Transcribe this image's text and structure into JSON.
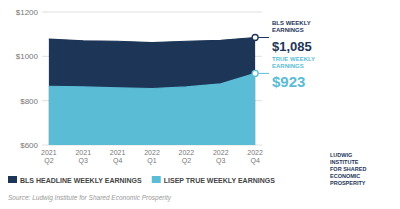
{
  "chart_data": {
    "type": "area",
    "categories": [
      "2021\nQ2",
      "2021\nQ3",
      "2021\nQ4",
      "2022\nQ1",
      "2022\nQ2",
      "2022\nQ3",
      "2022\nQ4"
    ],
    "series": [
      {
        "name": "BLS HEADLINE WEEKLY EARNINGS",
        "color": "#1d3557",
        "values": [
          1078,
          1070,
          1068,
          1062,
          1068,
          1072,
          1085
        ]
      },
      {
        "name": "LISEP TRUE WEEKLY EARNINGS",
        "color": "#5bbcd6",
        "values": [
          865,
          862,
          858,
          855,
          862,
          876,
          923
        ]
      }
    ],
    "ylim": [
      600,
      1200
    ],
    "yticks": [
      {
        "value": 600,
        "label": "$600"
      },
      {
        "value": 800,
        "label": "$800"
      },
      {
        "value": 1000,
        "label": "$1000"
      },
      {
        "value": 1200,
        "label": "$1200"
      }
    ],
    "grid": true,
    "legend": "lower left",
    "annotations": [
      "BLS WEEKLY\nEARNINGS",
      "$1,085",
      "TRUE WEEKLY\nEARNINGS",
      "$923",
      "Source: Ludwig Institute for Shared Economic Prosperity",
      "LUDWIG\nINSTITUTE\nFOR SHARED\nECONOMIC\nPROSPERITY"
    ]
  }
}
